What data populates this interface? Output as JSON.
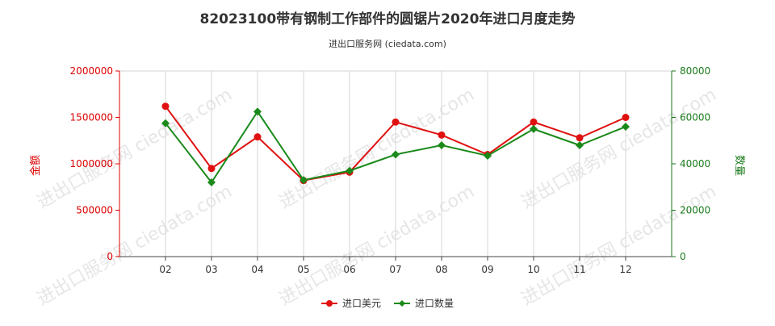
{
  "chart_data": {
    "type": "line",
    "title": "82023100带有钢制工作部件的圆锯片2020年进口月度走势",
    "subtitle": "进出口服务网 (ciedata.com)",
    "watermark": "进出口服务网 ciedata.com",
    "categories": [
      "02",
      "03",
      "04",
      "05",
      "06",
      "07",
      "08",
      "09",
      "10",
      "11",
      "12"
    ],
    "y_left": {
      "label": "金额",
      "range": [
        0,
        2000000
      ],
      "ticks": [
        "0",
        "500000",
        "1000000",
        "1500000",
        "2000000"
      ],
      "color": "#dd0000"
    },
    "y_right": {
      "label": "数量",
      "range": [
        0,
        80000
      ],
      "ticks": [
        "0",
        "20000",
        "40000",
        "60000",
        "80000"
      ],
      "color": "#1a7a1a"
    },
    "series": [
      {
        "name": "进口美元",
        "axis": "left",
        "color": "#e01010",
        "values": [
          1620000,
          950000,
          1290000,
          820000,
          910000,
          1450000,
          1310000,
          1100000,
          1450000,
          1280000,
          1500000
        ]
      },
      {
        "name": "进口数量",
        "axis": "right",
        "color": "#1a8a1a",
        "values": [
          57500,
          32000,
          62500,
          33000,
          37000,
          44000,
          48000,
          43500,
          55000,
          48000,
          56000
        ]
      }
    ],
    "grid": "vertical",
    "legend": "bottom-center"
  }
}
